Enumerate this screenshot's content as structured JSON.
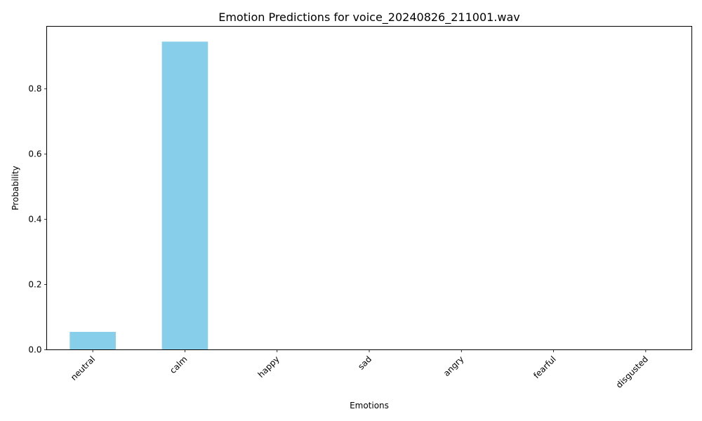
{
  "chart_data": {
    "type": "bar",
    "title": "Emotion Predictions for voice_20240826_211001.wav",
    "xlabel": "Emotions",
    "ylabel": "Probability",
    "categories": [
      "neutral",
      "calm",
      "happy",
      "sad",
      "angry",
      "fearful",
      "disgusted"
    ],
    "values": [
      0.055,
      0.945,
      0.0,
      0.0,
      0.0,
      0.0,
      0.0
    ],
    "ylim": [
      0,
      0.992
    ],
    "yticks": [
      0.0,
      0.2,
      0.4,
      0.6,
      0.8
    ],
    "ytick_labels": [
      "0.0",
      "0.2",
      "0.4",
      "0.6",
      "0.8"
    ],
    "bar_color": "#87ceeb",
    "grid": false,
    "legend": "none",
    "xtick_rotation_deg": 45
  }
}
